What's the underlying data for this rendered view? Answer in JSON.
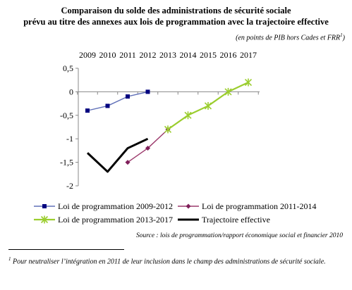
{
  "title_line1": "Comparaison du solde des administrations de sécurité sociale",
  "title_line2": "prévu au titre des annexes aux lois de programmation avec la trajectoire effective",
  "units_text": "(en points de PIB hors Cades et FRR",
  "units_footnote_mark": "1",
  "units_close": ")",
  "source": "Source : lois de programmation/rapport économique social et financier 2010",
  "footnote_mark": "1",
  "footnote_text": "Pour neutraliser l’intégration en 2011 de leur inclusion dans le champ des administrations de sécurité sociale.",
  "chart_data": {
    "type": "line",
    "x": [
      "2009",
      "2010",
      "2011",
      "2012",
      "2013",
      "2014",
      "2015",
      "2016",
      "2017"
    ],
    "x_axis_position": "top",
    "ylim": [
      -2,
      0.5
    ],
    "yticks": [
      "0,5",
      "0",
      "-0,5",
      "-1",
      "-1,5",
      "-2"
    ],
    "grid": false,
    "legend_position": "bottom",
    "series": [
      {
        "name": "Loi de programmation 2009-2012",
        "color": "#6070b8",
        "marker_color": "#00007f",
        "marker": "square",
        "values": [
          -0.4,
          -0.3,
          -0.1,
          0,
          null,
          null,
          null,
          null,
          null
        ]
      },
      {
        "name": "Loi de programmation 2011-2014",
        "color": "#9c3a6c",
        "marker_color": "#7f1f5a",
        "marker": "diamond",
        "values": [
          null,
          null,
          -1.5,
          -1.2,
          -0.8,
          null,
          null,
          null,
          null
        ]
      },
      {
        "name": "Loi de programmation 2013-2017",
        "color": "#9bcd2e",
        "marker_color": "#9bcd2e",
        "marker": "star",
        "values": [
          null,
          null,
          null,
          null,
          -0.8,
          -0.5,
          -0.3,
          0,
          0.2
        ]
      },
      {
        "name": "Trajectoire effective",
        "color": "#000000",
        "marker": "none",
        "values": [
          -1.3,
          -1.7,
          -1.2,
          -1.0,
          null,
          null,
          null,
          null,
          null
        ]
      }
    ]
  }
}
